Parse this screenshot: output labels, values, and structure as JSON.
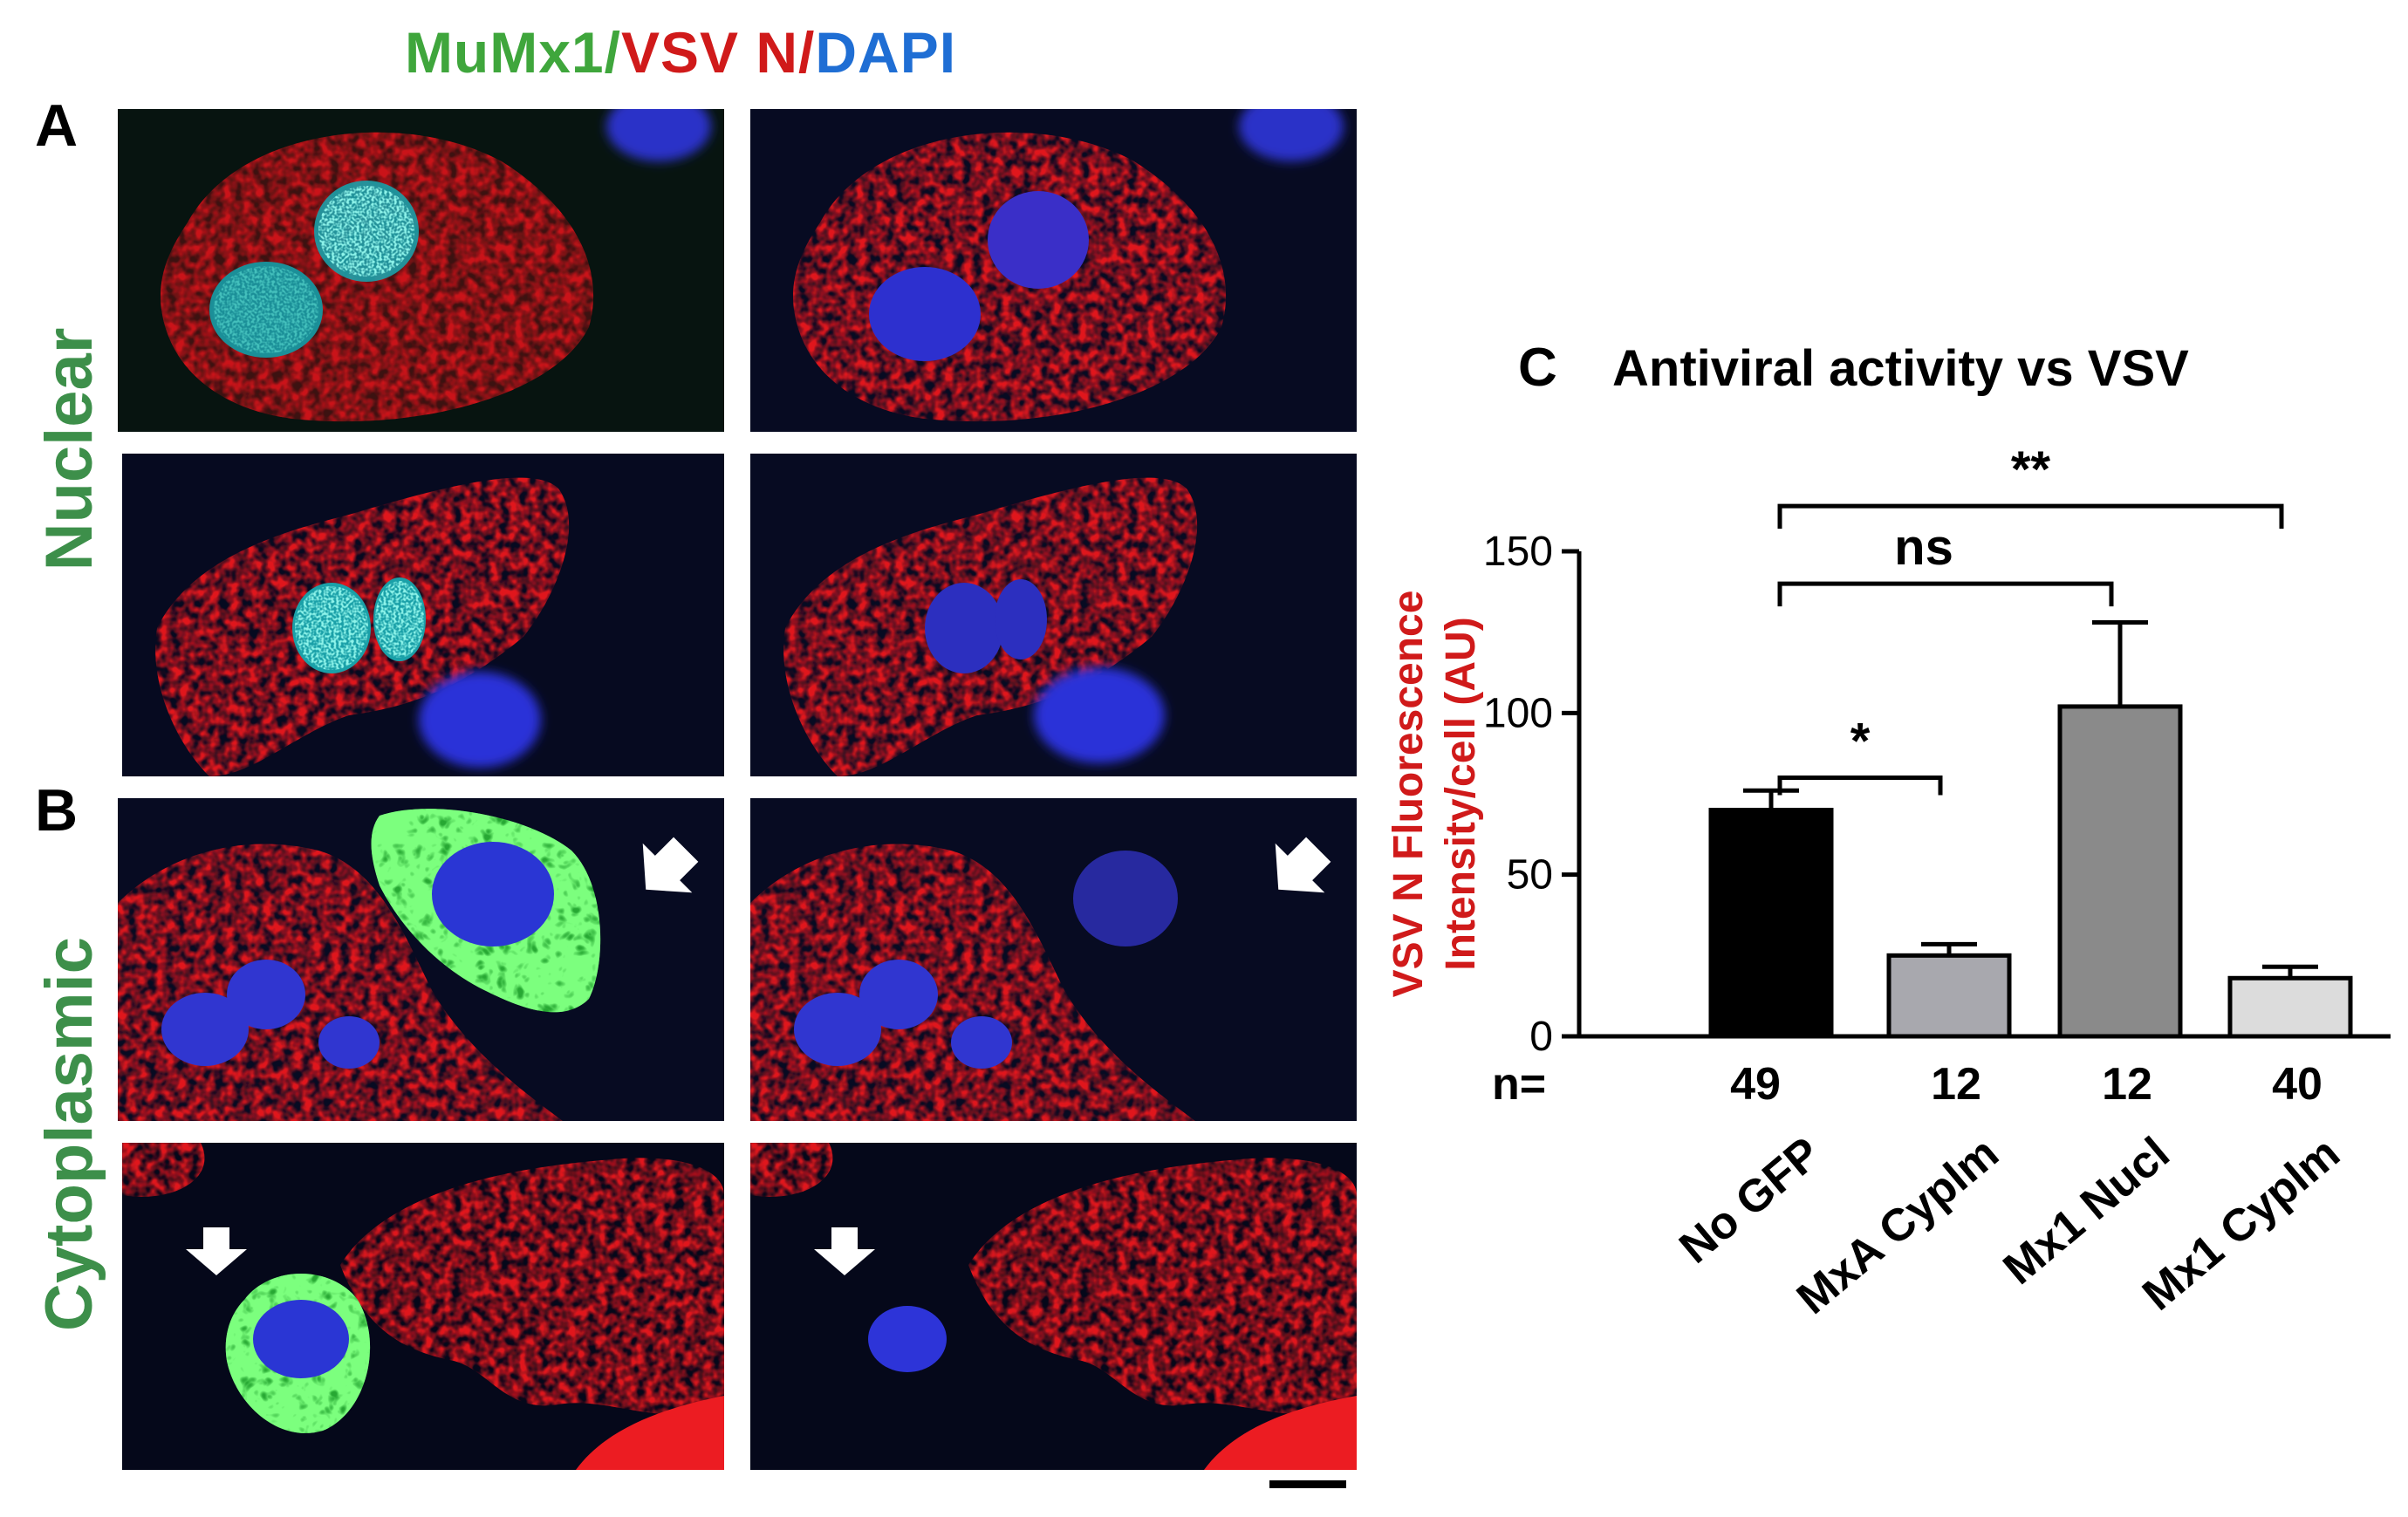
{
  "header": {
    "stain_parts": [
      {
        "text": "MuMx1/",
        "color": "#3fa63c"
      },
      {
        "text": "VSV N/",
        "color": "#d01a1a"
      },
      {
        "text": "DAPI",
        "color": "#1f6ed4"
      }
    ]
  },
  "panels": {
    "a_letter": "A",
    "b_letter": "B",
    "c_letter": "C",
    "a_row_label": "Nuclear",
    "b_row_label": "Cytoplasmic"
  },
  "colors": {
    "vsv_red": "#d8141e",
    "mx1_green": "#37c444",
    "dapi_blue": "#2a32d8",
    "background_dark": "#070b22",
    "label_green": "#3d8f4a",
    "ylabel_red": "#d01a1a"
  },
  "chart_data": {
    "type": "bar",
    "title": "Antiviral activity vs VSV",
    "ylabel": [
      "VSV N Fluorescence",
      "Intensity/cell (AU)"
    ],
    "xlabel": "",
    "categories": [
      "No GFP",
      "MxA Cyplm",
      "Mx1 Nucl",
      "Mx1 Cyplm"
    ],
    "values": [
      70,
      25,
      102,
      18
    ],
    "errors": [
      6,
      3.5,
      26,
      3.5
    ],
    "bar_colors": [
      "#000000",
      "#a8a8ae",
      "#8a8a8a",
      "#dcdcdc"
    ],
    "n_label": "n=",
    "n_values": [
      "49",
      "12",
      "12",
      "40"
    ],
    "ylim": [
      0,
      150
    ],
    "yticks": [
      0,
      50,
      100,
      150
    ],
    "grid": false,
    "significance": [
      {
        "from": 0,
        "to": 1,
        "label": "*"
      },
      {
        "from": 0,
        "to": 2,
        "label": "ns"
      },
      {
        "from": 0,
        "to": 3,
        "label": "**"
      }
    ]
  }
}
